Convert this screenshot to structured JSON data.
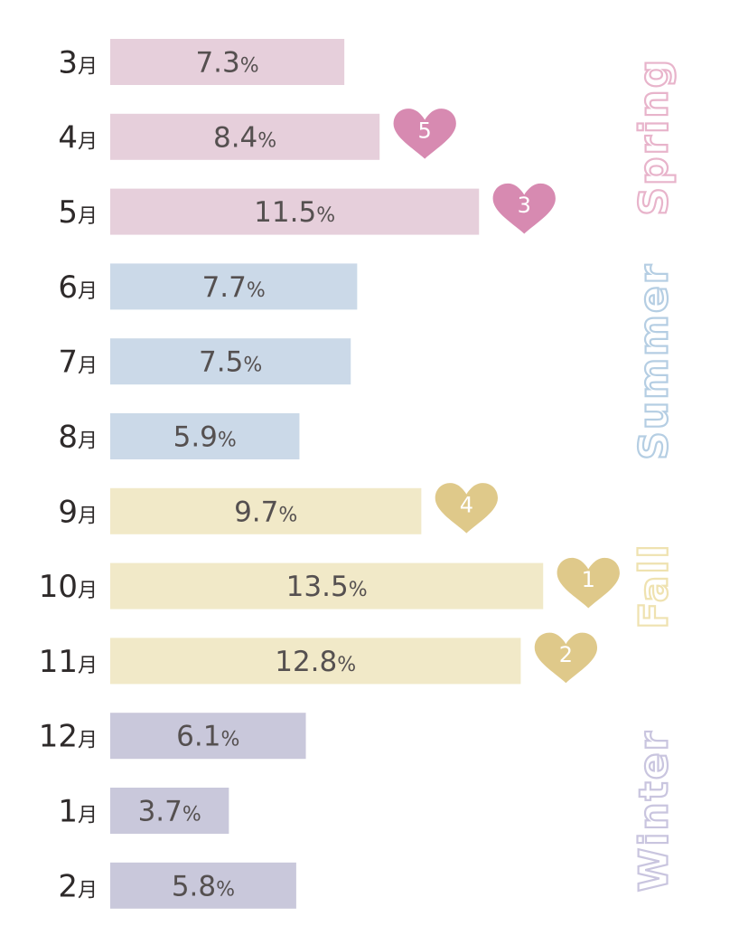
{
  "chart_data": {
    "type": "bar",
    "orientation": "horizontal",
    "unit": "%",
    "month_suffix": "月",
    "categories": [
      "3",
      "4",
      "5",
      "6",
      "7",
      "8",
      "9",
      "10",
      "11",
      "12",
      "1",
      "2"
    ],
    "values": [
      7.3,
      8.4,
      11.5,
      7.7,
      7.5,
      5.9,
      9.7,
      13.5,
      12.8,
      6.1,
      3.7,
      5.8
    ],
    "value_labels": [
      "7.3",
      "8.4",
      "11.5",
      "7.7",
      "7.5",
      "5.9",
      "9.7",
      "13.5",
      "12.8",
      "6.1",
      "3.7",
      "5.8"
    ],
    "seasons": [
      {
        "name": "Spring",
        "months": [
          "3",
          "4",
          "5"
        ],
        "color": "#e6cfdb",
        "outline": "#e8b4cb"
      },
      {
        "name": "Summer",
        "months": [
          "6",
          "7",
          "8"
        ],
        "color": "#cbd9e8",
        "outline": "#b5cee3"
      },
      {
        "name": "Fall",
        "months": [
          "9",
          "10",
          "11"
        ],
        "color": "#f1e9c8",
        "outline": "#efe2b0"
      },
      {
        "name": "Winter",
        "months": [
          "12",
          "1",
          "2"
        ],
        "color": "#c9c8db",
        "outline": "#c9c5df"
      }
    ],
    "rankings": [
      {
        "month": "10",
        "rank": "1"
      },
      {
        "month": "11",
        "rank": "2"
      },
      {
        "month": "5",
        "rank": "3"
      },
      {
        "month": "9",
        "rank": "4"
      },
      {
        "month": "4",
        "rank": "5"
      }
    ],
    "heart_colors": {
      "Spring": "#d78ab1",
      "Fall": "#dfc98a"
    }
  }
}
